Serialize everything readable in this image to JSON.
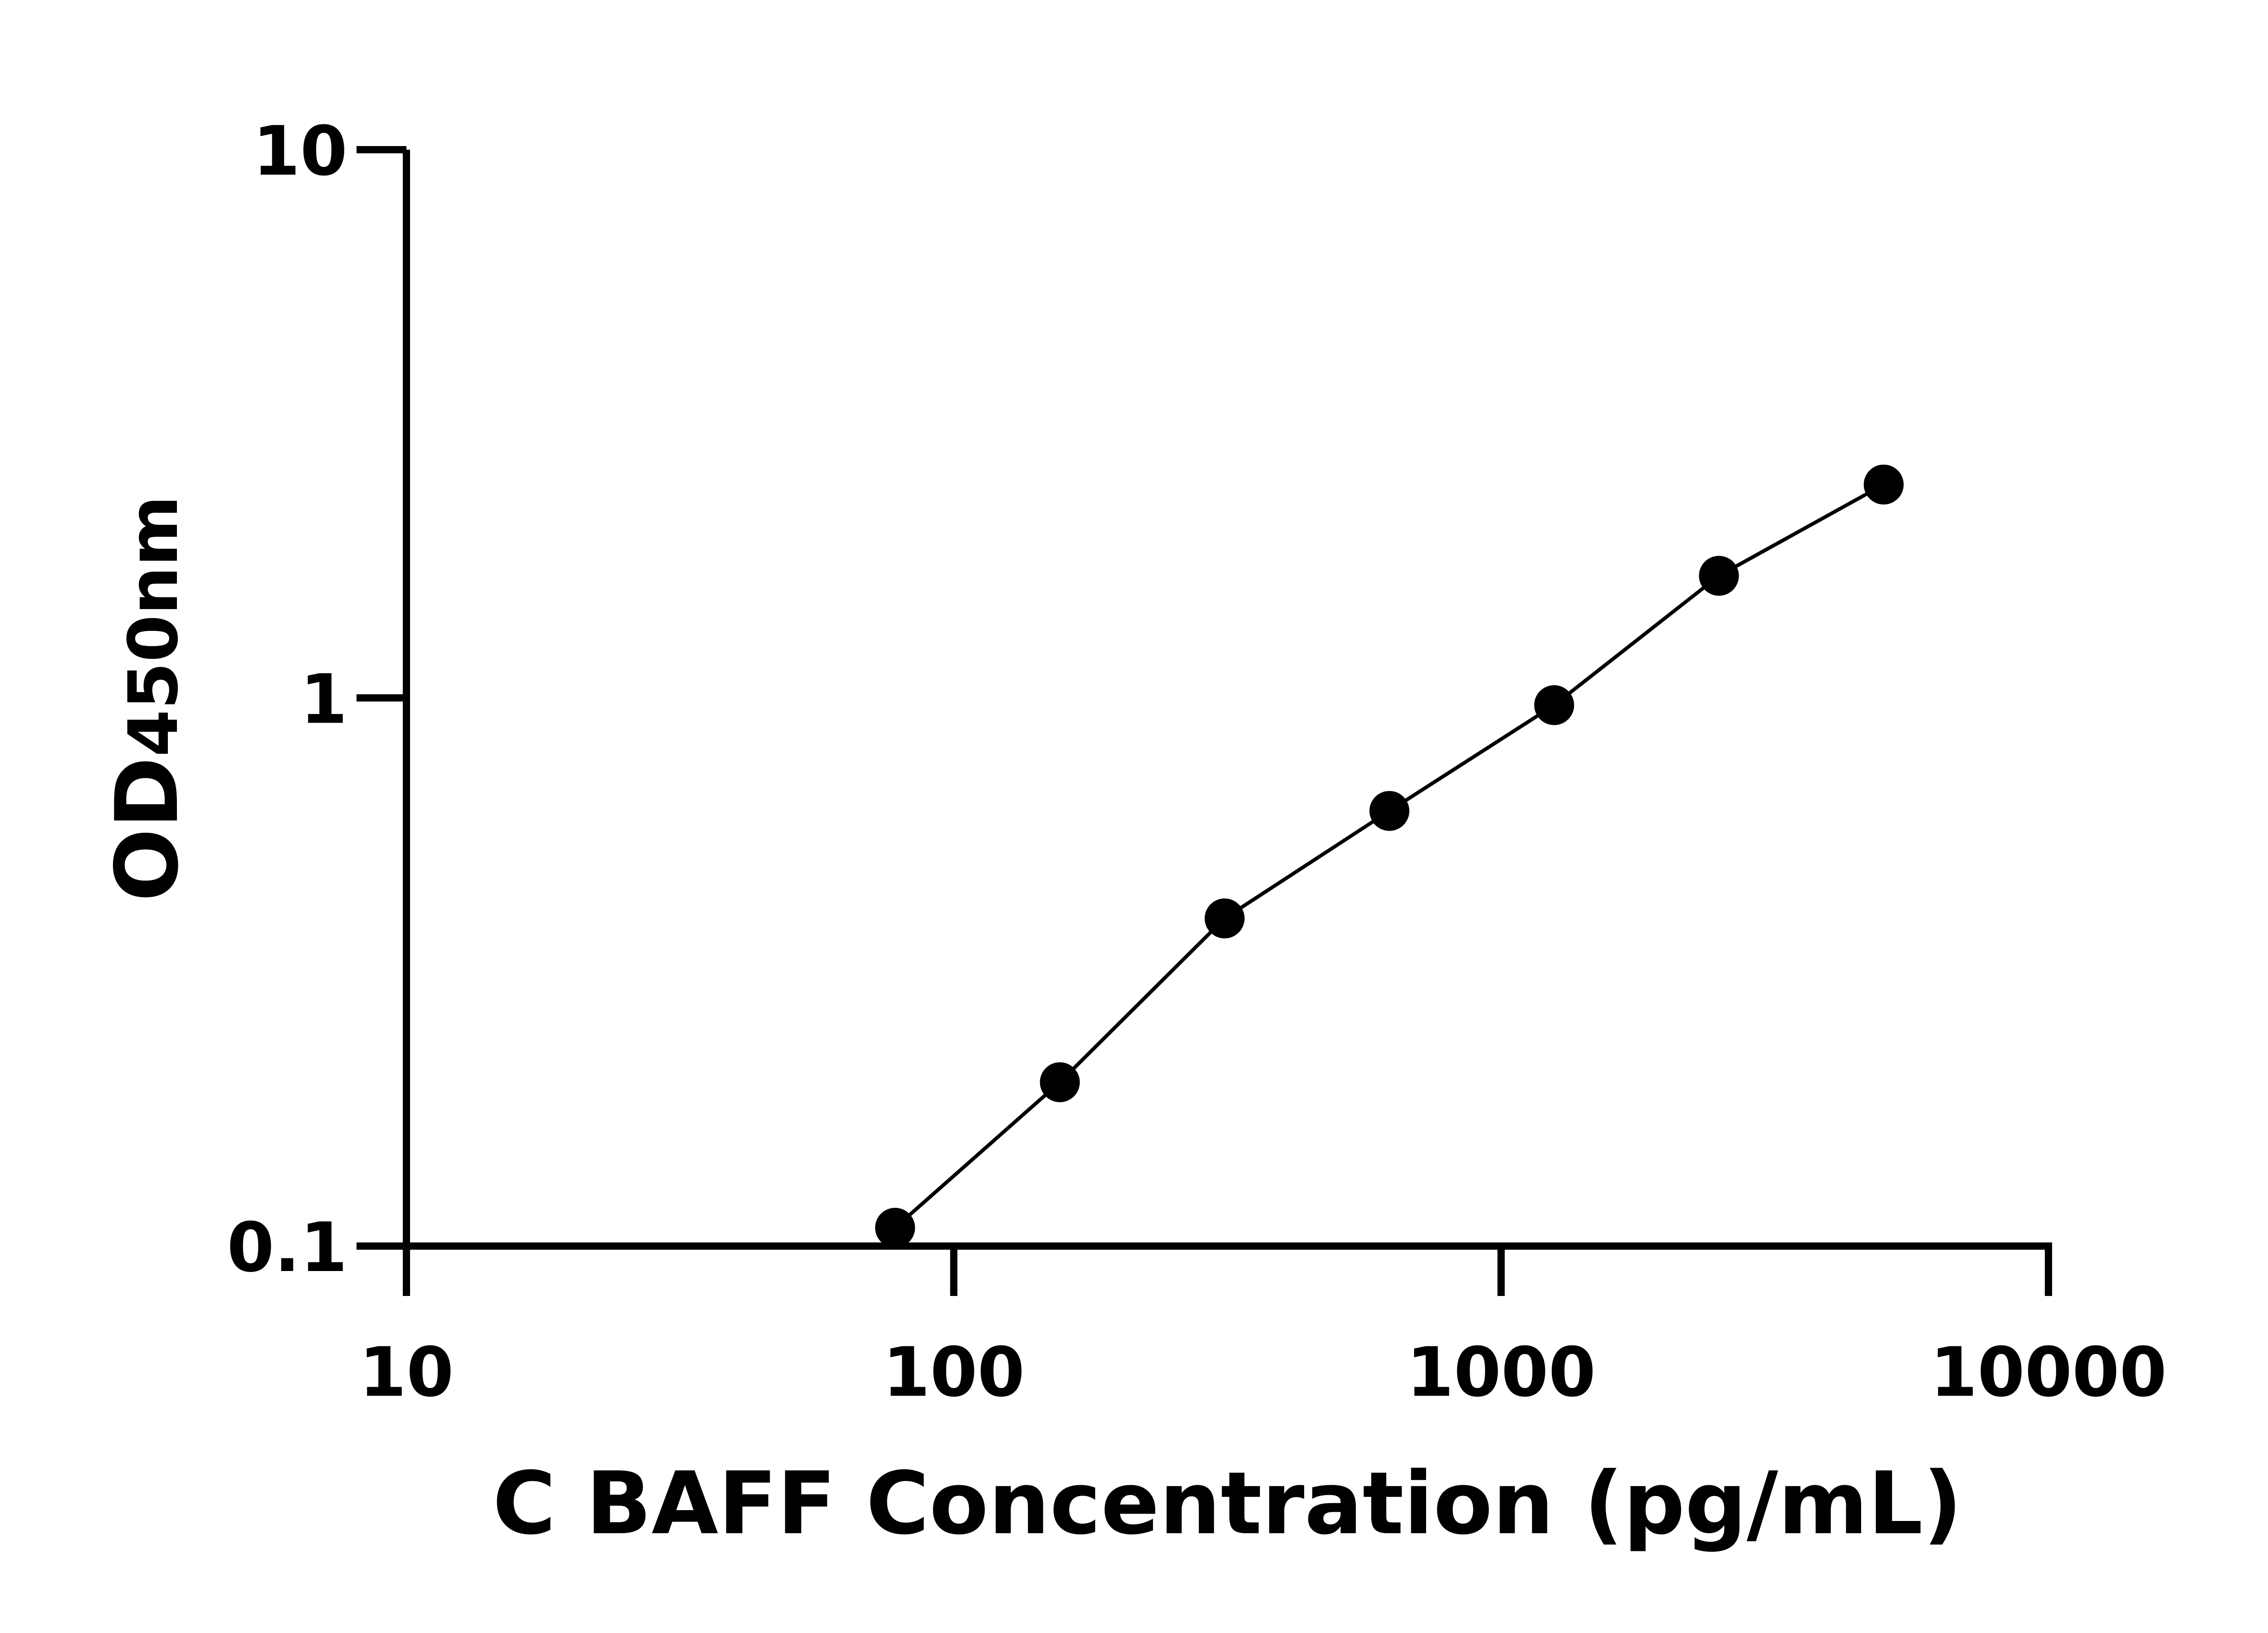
{
  "chart_data": {
    "type": "line",
    "title": "",
    "xlabel": "C BAFF Concentration (pg/mL)",
    "ylabel": {
      "main": "OD",
      "sub": "450nm"
    },
    "x_scale": "log",
    "y_scale": "log",
    "xlim": [
      10,
      10000
    ],
    "ylim": [
      0.1,
      10
    ],
    "x_ticks": [
      "10",
      "100",
      "1000",
      "10000"
    ],
    "y_ticks": [
      "0.1",
      "1",
      "10"
    ],
    "grid": false,
    "legend": "none",
    "marker_color": "#000000",
    "line_color": "#000000",
    "series": [
      {
        "x": [
          78.125,
          156.25,
          312.5,
          625,
          1250,
          2500,
          5000
        ],
        "y": [
          0.108,
          0.199,
          0.396,
          0.622,
          0.97,
          1.67,
          2.45
        ]
      }
    ]
  }
}
